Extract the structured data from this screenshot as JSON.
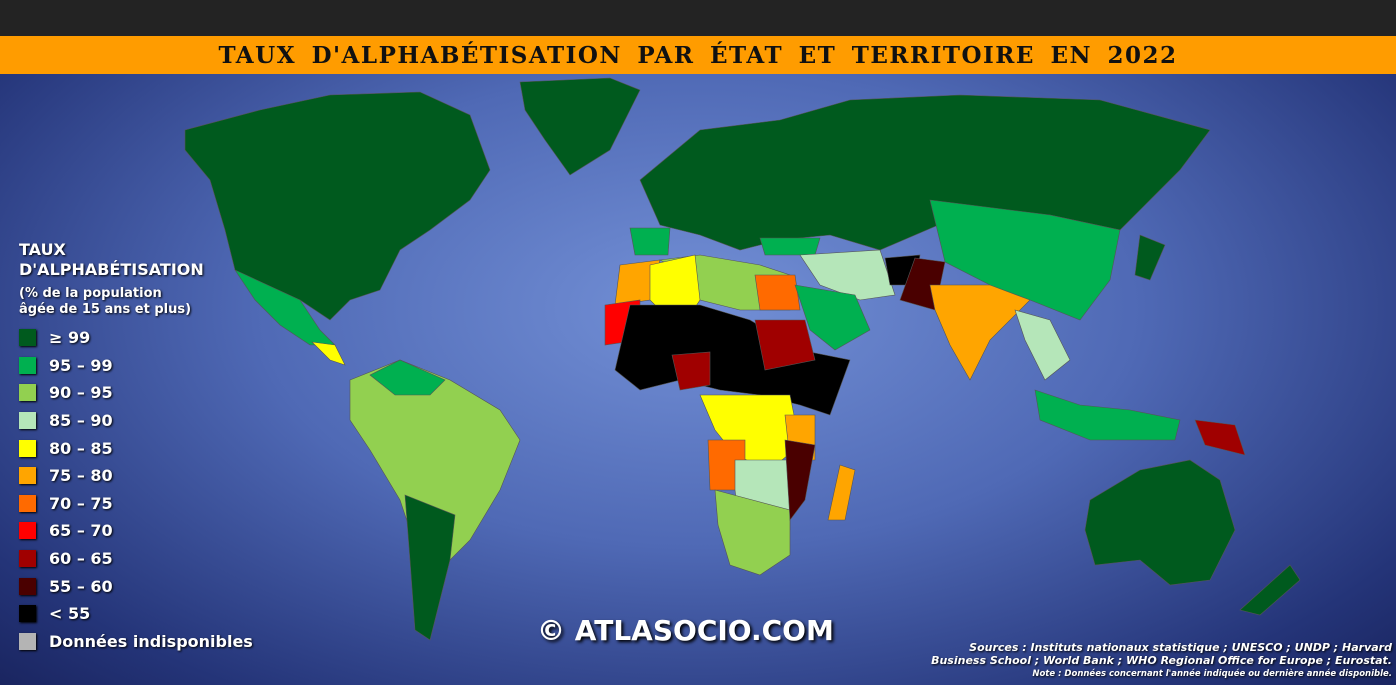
{
  "title": "TAUX D'ALPHABÉTISATION PAR ÉTAT ET TERRITOIRE EN 2022",
  "legend": {
    "title_line1": "TAUX",
    "title_line2": "D'ALPHABÉTISATION",
    "subtitle_line1": "(% de la population",
    "subtitle_line2": "âgée de 15 ans et plus)",
    "items": [
      {
        "label": "≥ 99",
        "color": "#005a1e"
      },
      {
        "label": "95 – 99",
        "color": "#00b050"
      },
      {
        "label": "90 – 95",
        "color": "#92d050"
      },
      {
        "label": "85 – 90",
        "color": "#b5e6b9"
      },
      {
        "label": "80 – 85",
        "color": "#ffff00"
      },
      {
        "label": "75 – 80",
        "color": "#ffa500"
      },
      {
        "label": "70 – 75",
        "color": "#ff6a00"
      },
      {
        "label": "65 – 70",
        "color": "#ff0000"
      },
      {
        "label": "60 – 65",
        "color": "#a00000"
      },
      {
        "label": "55 – 60",
        "color": "#4a0000"
      },
      {
        "label": "< 55",
        "color": "#000000"
      },
      {
        "label": "Données indisponibles",
        "color": "#b4b4b4"
      }
    ]
  },
  "copyright": "© ATLASOCIO.COM",
  "sources_line1": "Sources : Instituts nationaux statistique ; UNESCO ; UNDP ; Harvard",
  "sources_line2": "Business School ; World Bank ; WHO Regional Office for Europe ; Eurostat.",
  "note": "Note : Données concernant l'année indiquée ou dernière année disponible."
}
